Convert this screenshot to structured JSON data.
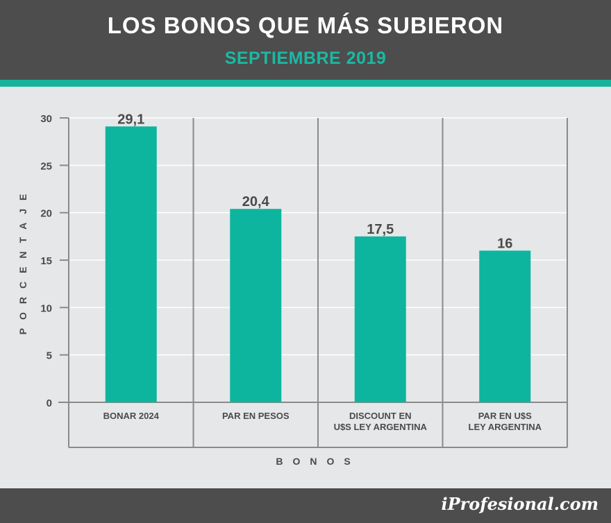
{
  "header": {
    "title": "LOS BONOS QUE MÁS SUBIERON",
    "subtitle": "SEPTIEMBRE 2019"
  },
  "footer": {
    "brand": "iProfesional.com"
  },
  "colors": {
    "bar": "#0db59e",
    "accent": "#15b39c",
    "header_bg": "#4d4d4d",
    "chart_bg": "#e6e7e9",
    "text": "#4a4a4a"
  },
  "chart_data": {
    "type": "bar",
    "title": "LOS BONOS QUE MÁS SUBIERON",
    "subtitle": "SEPTIEMBRE 2019",
    "categories": [
      [
        "BONAR 2024"
      ],
      [
        "PAR EN PESOS"
      ],
      [
        "DISCOUNT EN",
        "U$S LEY ARGENTINA"
      ],
      [
        "PAR EN U$S",
        "LEY ARGENTINA"
      ]
    ],
    "values": [
      29.1,
      20.4,
      17.5,
      16
    ],
    "value_labels": [
      "29,1",
      "20,4",
      "17,5",
      "16"
    ],
    "xlabel": "BONOS",
    "ylabel": "PORCENTAJE",
    "ylim": [
      0,
      30
    ],
    "yticks": [
      "0",
      "5",
      "10",
      "15",
      "20",
      "25",
      "30"
    ],
    "grid": true,
    "legend": "none"
  }
}
